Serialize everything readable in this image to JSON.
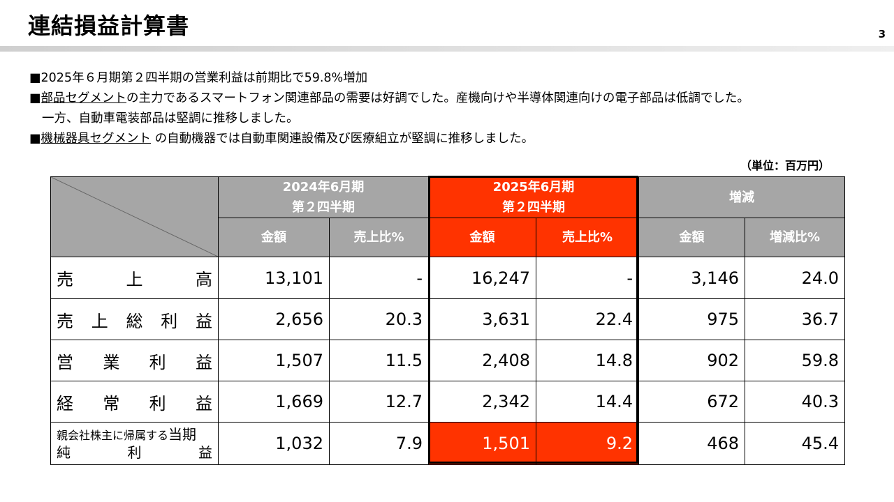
{
  "title": "連結損益計算書",
  "page_number": "3",
  "bullets": {
    "line1": "■2025年６月期第２四半期の営業利益は前期比で59.8%増加",
    "line2_prefix": "■",
    "line2_link": "部品セグメント",
    "line2_rest": "の主力であるスマートフォン関連部品の需要は好調でした。産機向けや半導体関連向けの電子部品は低調でした。",
    "line3": "一方、自動車電装部品は堅調に推移しました。",
    "line4_prefix": "■",
    "line4_link": "機械器具セグメント",
    "line4_rest": " の自動機器では自動車関連設備及び医療組立が堅調に推移しました。"
  },
  "unit_note": "（単位：百万円）",
  "table": {
    "headers": {
      "prev_period_line1": "2024年6月期",
      "prev_period_line2": "第２四半期",
      "curr_period_line1": "2025年6月期",
      "curr_period_line2": "第２四半期",
      "change": "増減",
      "amount": "金額",
      "sales_ratio": "売上比%",
      "change_ratio": "増減比%"
    },
    "rows": [
      {
        "label_chars": [
          "売",
          "上",
          "高"
        ],
        "prev_amount": "13,101",
        "prev_ratio": "-",
        "curr_amount": "16,247",
        "curr_ratio": "-",
        "change_amount": "3,146",
        "change_ratio": "24.0"
      },
      {
        "label_chars": [
          "売",
          "上",
          "総",
          "利",
          "益"
        ],
        "prev_amount": "2,656",
        "prev_ratio": "20.3",
        "curr_amount": "3,631",
        "curr_ratio": "22.4",
        "change_amount": "975",
        "change_ratio": "36.7"
      },
      {
        "label_chars": [
          "営",
          "業",
          "利",
          "益"
        ],
        "prev_amount": "1,507",
        "prev_ratio": "11.5",
        "curr_amount": "2,408",
        "curr_ratio": "14.8",
        "change_amount": "902",
        "change_ratio": "59.8"
      },
      {
        "label_chars": [
          "経",
          "常",
          "利",
          "益"
        ],
        "prev_amount": "1,669",
        "prev_ratio": "12.7",
        "curr_amount": "2,342",
        "curr_ratio": "14.4",
        "change_amount": "672",
        "change_ratio": "40.3"
      },
      {
        "label_line1_small": "親会社株主に帰属する",
        "label_line1_big": "当期",
        "label_line2_chars": [
          "純",
          "利",
          "益"
        ],
        "prev_amount": "1,032",
        "prev_ratio": "7.9",
        "curr_amount": "1,501",
        "curr_ratio": "9.2",
        "change_amount": "468",
        "change_ratio": "45.4"
      }
    ]
  },
  "colors": {
    "header_gray": "#a6a6a6",
    "highlight_red": "#ff3300"
  }
}
